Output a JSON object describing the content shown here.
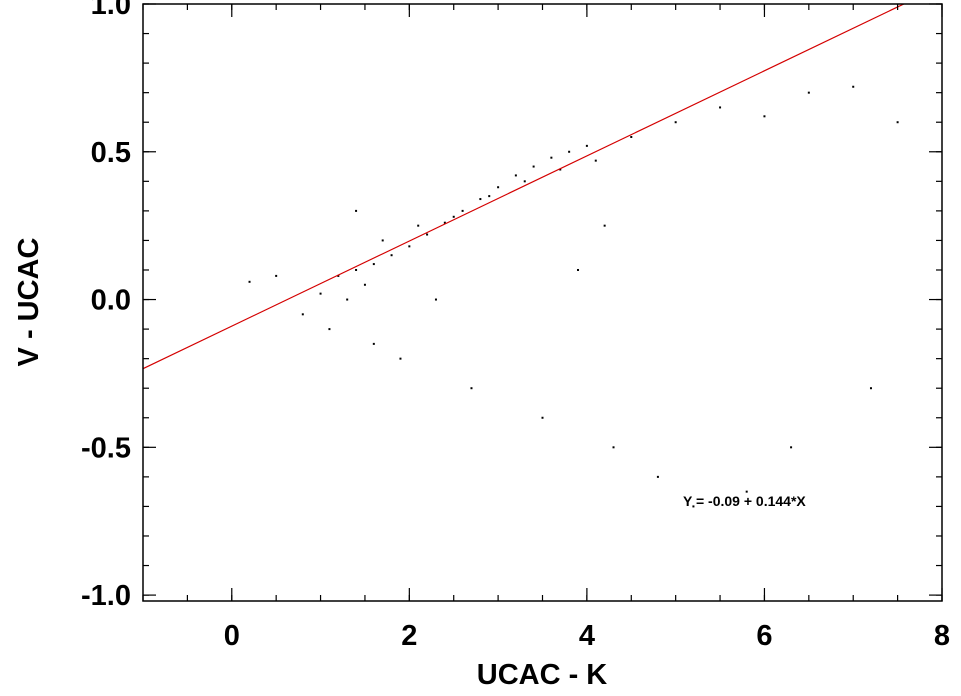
{
  "chart_data": {
    "type": "scatter",
    "title": "",
    "xlabel": "UCAC - K",
    "ylabel": "V - UCAC",
    "xlim": [
      -1,
      8
    ],
    "ylim": [
      -1.02,
      1.0
    ],
    "xticks": [
      0,
      2,
      4,
      6,
      8
    ],
    "xtick_labels": [
      "0",
      "2",
      "4",
      "6",
      "8"
    ],
    "yticks": [
      -1.0,
      -0.5,
      0.0,
      0.5,
      1.0
    ],
    "ytick_labels": [
      "-1.0",
      "-0.5",
      "0.0",
      "0.5",
      "1.0"
    ],
    "x_minor_step": 0.5,
    "y_minor_step": 0.1,
    "grid": false,
    "point_color": "#000000",
    "fit_line": {
      "intercept": -0.09,
      "slope": 0.144,
      "color": "#d40000",
      "label": "Y = -0.09 + 0.144*X"
    },
    "series": [
      {
        "x": [
          1.2,
          1.4,
          1.5,
          1.6,
          1.8,
          2.0,
          2.2,
          2.4,
          2.6,
          2.8,
          3.0,
          3.2,
          3.4,
          3.6,
          3.8,
          4.0,
          1.0,
          1.3,
          1.7,
          2.1,
          2.5,
          2.9,
          3.3,
          3.7,
          4.1,
          4.5,
          5.0,
          5.5,
          6.0,
          6.5,
          7.0,
          7.5,
          0.8,
          0.5,
          0.2,
          1.1,
          1.9,
          2.7,
          3.5,
          4.3,
          4.8,
          5.2,
          5.8,
          6.3,
          7.2,
          4.2,
          3.9,
          2.3,
          1.6,
          1.4
        ],
        "y": [
          0.08,
          0.1,
          0.05,
          0.12,
          0.15,
          0.18,
          0.22,
          0.26,
          0.3,
          0.34,
          0.38,
          0.42,
          0.45,
          0.48,
          0.5,
          0.52,
          0.02,
          0.0,
          0.2,
          0.25,
          0.28,
          0.35,
          0.4,
          0.44,
          0.47,
          0.55,
          0.6,
          0.65,
          0.62,
          0.7,
          0.72,
          0.6,
          -0.05,
          0.08,
          0.06,
          -0.1,
          -0.2,
          -0.3,
          -0.4,
          -0.5,
          -0.6,
          -0.7,
          -0.65,
          -0.5,
          -0.3,
          0.25,
          0.1,
          0.0,
          -0.15,
          0.3
        ]
      }
    ]
  }
}
